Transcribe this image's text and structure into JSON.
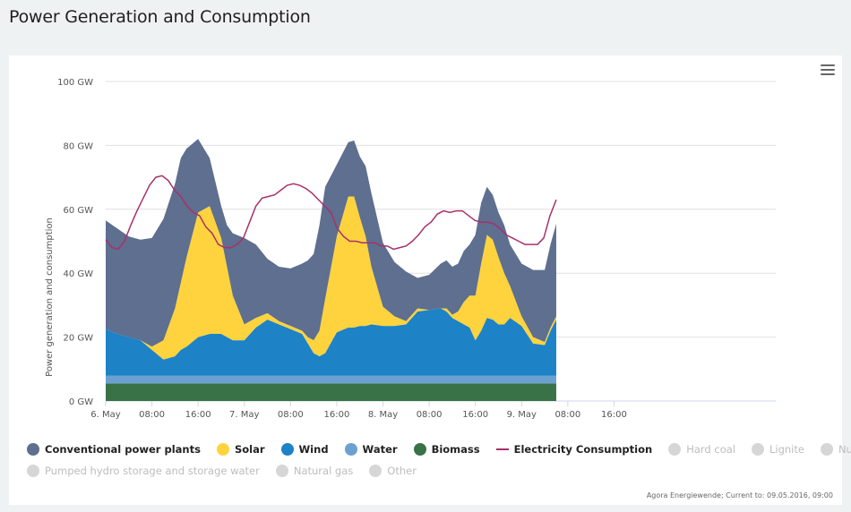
{
  "page": {
    "title": "Power Generation and Consumption"
  },
  "menu": {
    "icon": "hamburger-menu-icon"
  },
  "credits": "Agora Energiewende; Current to: 09.05.2016, 09:00",
  "legend": {
    "row1": [
      {
        "label": "Conventional power plants",
        "color": "#5e6f8f",
        "active": true,
        "symbol": "circle"
      },
      {
        "label": "Solar",
        "color": "#ffd33d",
        "active": true,
        "symbol": "circle"
      },
      {
        "label": "Wind",
        "color": "#1e82c6",
        "active": true,
        "symbol": "circle"
      },
      {
        "label": "Water",
        "color": "#6ba1d1",
        "active": true,
        "symbol": "circle"
      },
      {
        "label": "Biomass",
        "color": "#3a7247",
        "active": true,
        "symbol": "circle"
      },
      {
        "label": "Electricity Consumption",
        "color": "#a8306d",
        "active": true,
        "symbol": "line"
      },
      {
        "label": "Hard coal",
        "color": "#d6d6d6",
        "active": false,
        "symbol": "circle"
      },
      {
        "label": "Lignite",
        "color": "#d6d6d6",
        "active": false,
        "symbol": "circle"
      },
      {
        "label": "Nuclear",
        "color": "#d6d6d6",
        "active": false,
        "symbol": "circle"
      }
    ],
    "row2": [
      {
        "label": "Pumped hydro storage and storage water",
        "color": "#d6d6d6",
        "active": false,
        "symbol": "circle"
      },
      {
        "label": "Natural gas",
        "color": "#d6d6d6",
        "active": false,
        "symbol": "circle"
      },
      {
        "label": "Other",
        "color": "#d6d6d6",
        "active": false,
        "symbol": "circle"
      }
    ]
  },
  "chart_data": {
    "type": "area",
    "stacked": true,
    "title": "Power Generation and Consumption",
    "ylabel": "Power generation and consumption",
    "ylim": [
      0,
      100
    ],
    "y_ticks": [
      "0 GW",
      "20 GW",
      "40 GW",
      "60 GW",
      "80 GW",
      "100 GW"
    ],
    "x_unit": "hours since 6. May 00:00",
    "xlim": [
      0,
      116
    ],
    "x_ticks": [
      {
        "h": 0,
        "label": "6. May"
      },
      {
        "h": 8,
        "label": "08:00"
      },
      {
        "h": 16,
        "label": "16:00"
      },
      {
        "h": 24,
        "label": "7. May"
      },
      {
        "h": 32,
        "label": "08:00"
      },
      {
        "h": 40,
        "label": "16:00"
      },
      {
        "h": 48,
        "label": "8. May"
      },
      {
        "h": 56,
        "label": "08:00"
      },
      {
        "h": 64,
        "label": "16:00"
      },
      {
        "h": 72,
        "label": "9. May"
      },
      {
        "h": 80,
        "label": "08:00"
      },
      {
        "h": 88,
        "label": "16:00"
      }
    ],
    "x": [
      0,
      2,
      4,
      6,
      8,
      10,
      12,
      13,
      14,
      16,
      18,
      20,
      21,
      22,
      24,
      26,
      28,
      30,
      32,
      34,
      35,
      36,
      37,
      38,
      40,
      42,
      43,
      44,
      45,
      46,
      48,
      50,
      52,
      54,
      56,
      58,
      59,
      60,
      61,
      62,
      63,
      64,
      65,
      66,
      67,
      68,
      69,
      70,
      72,
      74,
      76,
      77,
      78
    ],
    "series": [
      {
        "name": "Biomass",
        "color": "#3a7247",
        "values": [
          5.5,
          5.5,
          5.5,
          5.5,
          5.5,
          5.5,
          5.5,
          5.5,
          5.5,
          5.5,
          5.5,
          5.5,
          5.5,
          5.5,
          5.5,
          5.5,
          5.5,
          5.5,
          5.5,
          5.5,
          5.5,
          5.5,
          5.5,
          5.5,
          5.5,
          5.5,
          5.5,
          5.5,
          5.5,
          5.5,
          5.5,
          5.5,
          5.5,
          5.5,
          5.5,
          5.5,
          5.5,
          5.5,
          5.5,
          5.5,
          5.5,
          5.5,
          5.5,
          5.5,
          5.5,
          5.5,
          5.5,
          5.5,
          5.5,
          5.5,
          5.5,
          5.5,
          5.5
        ]
      },
      {
        "name": "Water",
        "color": "#6ba1d1",
        "values": [
          2.5,
          2.5,
          2.5,
          2.5,
          2.5,
          2.5,
          2.5,
          2.5,
          2.5,
          2.5,
          2.5,
          2.5,
          2.5,
          2.5,
          2.5,
          2.5,
          2.5,
          2.5,
          2.5,
          2.5,
          2.5,
          2.5,
          2.5,
          2.5,
          2.5,
          2.5,
          2.5,
          2.5,
          2.5,
          2.5,
          2.5,
          2.5,
          2.5,
          2.5,
          2.5,
          2.5,
          2.5,
          2.5,
          2.5,
          2.5,
          2.5,
          2.5,
          2.5,
          2.5,
          2.5,
          2.5,
          2.5,
          2.5,
          2.5,
          2.5,
          2.5,
          2.5,
          2.5
        ]
      },
      {
        "name": "Wind",
        "color": "#1e82c6",
        "values": [
          14.5,
          13,
          12,
          11,
          8,
          5,
          6,
          8,
          9,
          12,
          13,
          13,
          12,
          11,
          11,
          15,
          17.5,
          16,
          14.5,
          13,
          10,
          7,
          6,
          7,
          13.5,
          15,
          15,
          15.5,
          15.5,
          16,
          15.5,
          15.5,
          16,
          20,
          20.5,
          21,
          20,
          18,
          17,
          16,
          15,
          11,
          14,
          18,
          17.5,
          16,
          16,
          18,
          15.5,
          10,
          9.5,
          14,
          17.5
        ]
      },
      {
        "name": "Solar",
        "color": "#ffd33d",
        "values": [
          0,
          0,
          0,
          0,
          1,
          6,
          15,
          21,
          28,
          39,
          40,
          30,
          22,
          14,
          5,
          3,
          2,
          1,
          1,
          1,
          2,
          4,
          8,
          17,
          30,
          41,
          41,
          34,
          28,
          18,
          6,
          3,
          1,
          1,
          0,
          0,
          1,
          1,
          3,
          7,
          10,
          14,
          21,
          26,
          25,
          21,
          16,
          10,
          3,
          2,
          1,
          1,
          1
        ]
      },
      {
        "name": "Conventional power plants",
        "color": "#5e6f8f",
        "values": [
          34,
          33,
          31.5,
          31.5,
          34,
          38,
          39,
          39,
          34,
          23,
          15,
          10,
          13,
          19.5,
          27,
          23,
          17,
          17,
          18,
          21,
          24,
          27,
          33,
          35,
          22.5,
          17,
          17.5,
          19,
          22,
          23,
          20,
          17,
          15.5,
          9.5,
          11,
          14,
          15,
          15,
          15,
          16,
          16,
          19,
          19,
          15,
          14,
          14,
          15,
          13,
          16.5,
          21,
          22.5,
          26,
          29
        ]
      }
    ],
    "consumption": {
      "name": "Electricity Consumption",
      "color": "#a8306d",
      "values": [
        50.5,
        48,
        47.5,
        50,
        55,
        59.5,
        63.5,
        67.5,
        70,
        70.5,
        69,
        66,
        64,
        61,
        59,
        58,
        54.5,
        52.5,
        49,
        48,
        48,
        49,
        51,
        56,
        61,
        63.5,
        64,
        64.5,
        66,
        67.5,
        68,
        67.5,
        66.5,
        65,
        63,
        61,
        59,
        54,
        51.5,
        50,
        50,
        49.5,
        49.5,
        49.5,
        48.5,
        48.5,
        47.5,
        48,
        48.5,
        50,
        52,
        54.5,
        56,
        58.5,
        59.5,
        59,
        59.5,
        59.5,
        58,
        56.5,
        56,
        56,
        55.5,
        54,
        52,
        51,
        50,
        49,
        49,
        49,
        51,
        58,
        63
      ]
    }
  }
}
